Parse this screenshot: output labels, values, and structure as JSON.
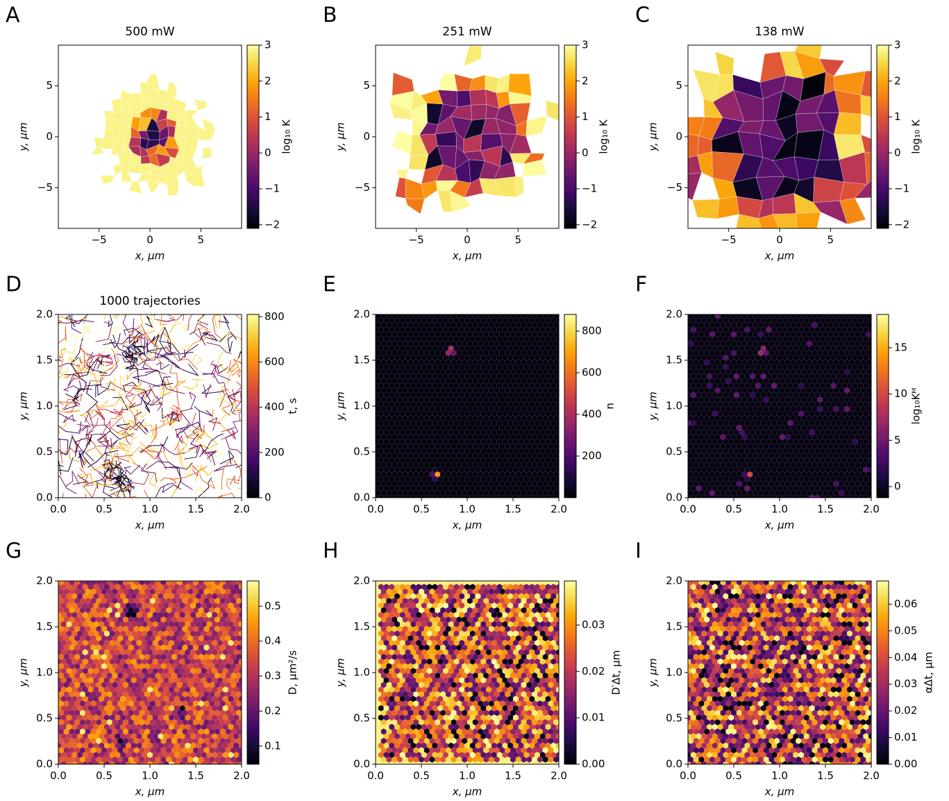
{
  "chart_data": [
    {
      "type": "voronoi",
      "panel_label": "A",
      "title": "500 mW",
      "xlabel": "x, μm",
      "ylabel": "y, μm",
      "xlim": [
        -9,
        9
      ],
      "ylim": [
        -9,
        9
      ],
      "xticks": [
        {
          "value": -5,
          "label": "−5"
        },
        0,
        5
      ],
      "yticks": [
        {
          "value": -5,
          "label": "−5"
        },
        0,
        5
      ],
      "colormap": "inferno",
      "colorbar": {
        "label": "log₁₀ K",
        "lim": [
          -2.1,
          3
        ],
        "ticks": [
          {
            "value": -2,
            "label": "−2"
          },
          {
            "value": -1,
            "label": "−1"
          },
          0,
          1,
          2,
          3
        ]
      }
    },
    {
      "type": "voronoi",
      "panel_label": "B",
      "title": "251 mW",
      "xlabel": "x, μm",
      "ylabel": "y, μm",
      "xlim": [
        -9,
        9
      ],
      "ylim": [
        -9,
        9
      ],
      "xticks": [
        {
          "value": -5,
          "label": "−5"
        },
        0,
        5
      ],
      "yticks": [
        {
          "value": -5,
          "label": "−5"
        },
        0,
        5
      ],
      "colormap": "inferno",
      "colorbar": {
        "label": "log₁₀ K",
        "lim": [
          -2.1,
          3
        ],
        "ticks": [
          {
            "value": -2,
            "label": "−2"
          },
          {
            "value": -1,
            "label": "−1"
          },
          0,
          1,
          2,
          3
        ]
      }
    },
    {
      "type": "voronoi",
      "panel_label": "C",
      "title": "138 mW",
      "xlabel": "x, μm",
      "ylabel": "y, μm",
      "xlim": [
        -9,
        9
      ],
      "ylim": [
        -9,
        9
      ],
      "xticks": [
        {
          "value": -5,
          "label": "−5"
        },
        0,
        5
      ],
      "yticks": [
        {
          "value": -5,
          "label": "−5"
        },
        0,
        5
      ],
      "colormap": "inferno",
      "colorbar": {
        "label": "log₁₀ K",
        "lim": [
          -2.1,
          3
        ],
        "ticks": [
          {
            "value": -2,
            "label": "−2"
          },
          {
            "value": -1,
            "label": "−1"
          },
          0,
          1,
          2,
          3
        ]
      }
    },
    {
      "type": "trajectories",
      "panel_label": "D",
      "title": "1000 trajectories",
      "xlabel": "x, μm",
      "ylabel": "y, μm",
      "xlim": [
        0,
        2
      ],
      "ylim": [
        0,
        2
      ],
      "xticks": [
        {
          "value": 0,
          "label": "0.0"
        },
        0.5,
        {
          "value": 1,
          "label": "1.0"
        },
        1.5,
        {
          "value": 2,
          "label": "2.0"
        }
      ],
      "yticks": [
        {
          "value": 0,
          "label": "0.0"
        },
        0.5,
        {
          "value": 1,
          "label": "1.0"
        },
        1.5,
        {
          "value": 2,
          "label": "2.0"
        }
      ],
      "colormap": "inferno",
      "colorbar": {
        "label": "t, s",
        "lim": [
          0,
          810
        ],
        "ticks": [
          0,
          200,
          400,
          600,
          800
        ]
      }
    },
    {
      "type": "hexbin",
      "panel_label": "E",
      "xlabel": "x, μm",
      "ylabel": "y, μm",
      "xlim": [
        0,
        2
      ],
      "ylim": [
        0,
        2
      ],
      "xticks": [
        {
          "value": 0,
          "label": "0.0"
        },
        0.5,
        {
          "value": 1,
          "label": "1.0"
        },
        1.5,
        {
          "value": 2,
          "label": "2.0"
        }
      ],
      "yticks": [
        {
          "value": 0,
          "label": "0.0"
        },
        0.5,
        {
          "value": 1,
          "label": "1.0"
        },
        1.5,
        {
          "value": 2,
          "label": "2.0"
        }
      ],
      "colormap": "inferno",
      "colorbar": {
        "label": "n",
        "lim": [
          0,
          880
        ],
        "ticks": [
          200,
          400,
          600,
          800
        ]
      }
    },
    {
      "type": "hexbin",
      "panel_label": "F",
      "xlabel": "x, μm",
      "ylabel": "y, μm",
      "xlim": [
        0,
        2
      ],
      "ylim": [
        0,
        2
      ],
      "xticks": [
        {
          "value": 0,
          "label": "0.0"
        },
        0.5,
        {
          "value": 1,
          "label": "1.0"
        },
        1.5,
        {
          "value": 2,
          "label": "2.0"
        }
      ],
      "yticks": [
        {
          "value": 0,
          "label": "0.0"
        },
        0.5,
        {
          "value": 1,
          "label": "1.0"
        },
        1.5,
        {
          "value": 2,
          "label": "2.0"
        }
      ],
      "colormap": "inferno",
      "colorbar": {
        "label": "log₁₀Kᴹ",
        "lim": [
          -1.2,
          18.6
        ],
        "ticks": [
          0,
          5,
          10,
          15
        ]
      }
    },
    {
      "type": "hexbin",
      "panel_label": "G",
      "xlabel": "x, μm",
      "ylabel": "y, μm",
      "xlim": [
        0,
        2
      ],
      "ylim": [
        0,
        2
      ],
      "xticks": [
        {
          "value": 0,
          "label": "0.0"
        },
        0.5,
        {
          "value": 1,
          "label": "1.0"
        },
        1.5,
        {
          "value": 2,
          "label": "2.0"
        }
      ],
      "yticks": [
        {
          "value": 0,
          "label": "0.0"
        },
        0.5,
        {
          "value": 1,
          "label": "1.0"
        },
        1.5,
        {
          "value": 2,
          "label": "2.0"
        }
      ],
      "colormap": "inferno",
      "colorbar": {
        "label": "D, μm²/s",
        "lim": [
          0.048,
          0.572
        ],
        "ticks": [
          0.1,
          0.2,
          0.3,
          0.4,
          0.5
        ]
      }
    },
    {
      "type": "hexbin",
      "panel_label": "H",
      "xlabel": "x, μm",
      "ylabel": "y, μm",
      "xlim": [
        0,
        2
      ],
      "ylim": [
        0,
        2
      ],
      "xticks": [
        {
          "value": 0,
          "label": "0.0"
        },
        0.5,
        {
          "value": 1,
          "label": "1.0"
        },
        1.5,
        {
          "value": 2,
          "label": "2.0"
        }
      ],
      "yticks": [
        {
          "value": 0,
          "label": "0.0"
        },
        0.5,
        {
          "value": 1,
          "label": "1.0"
        },
        1.5,
        {
          "value": 2,
          "label": "2.0"
        }
      ],
      "colormap": "inferno",
      "colorbar": {
        "label": "D′Δt, μm",
        "lim": [
          0,
          0.0395
        ],
        "ticks": [
          {
            "value": 0,
            "label": "0.00"
          },
          {
            "value": 0.01,
            "label": "0.01"
          },
          {
            "value": 0.02,
            "label": "0.02"
          },
          {
            "value": 0.03,
            "label": "0.03"
          }
        ]
      }
    },
    {
      "type": "hexbin",
      "panel_label": "I",
      "xlabel": "x, μm",
      "ylabel": "y, μm",
      "xlim": [
        0,
        2
      ],
      "ylim": [
        0,
        2
      ],
      "xticks": [
        {
          "value": 0,
          "label": "0.0"
        },
        0.5,
        {
          "value": 1,
          "label": "1.0"
        },
        1.5,
        {
          "value": 2,
          "label": "2.0"
        }
      ],
      "yticks": [
        {
          "value": 0,
          "label": "0.0"
        },
        0.5,
        {
          "value": 1,
          "label": "1.0"
        },
        1.5,
        {
          "value": 2,
          "label": "2.0"
        }
      ],
      "colormap": "inferno",
      "colorbar": {
        "label": "αΔt, μm",
        "lim": [
          0,
          0.0687
        ],
        "ticks": [
          {
            "value": 0,
            "label": "0.00"
          },
          {
            "value": 0.01,
            "label": "0.01"
          },
          {
            "value": 0.02,
            "label": "0.02"
          },
          {
            "value": 0.03,
            "label": "0.03"
          },
          {
            "value": 0.04,
            "label": "0.04"
          },
          {
            "value": 0.05,
            "label": "0.05"
          },
          {
            "value": 0.06,
            "label": "0.06"
          }
        ]
      }
    }
  ]
}
